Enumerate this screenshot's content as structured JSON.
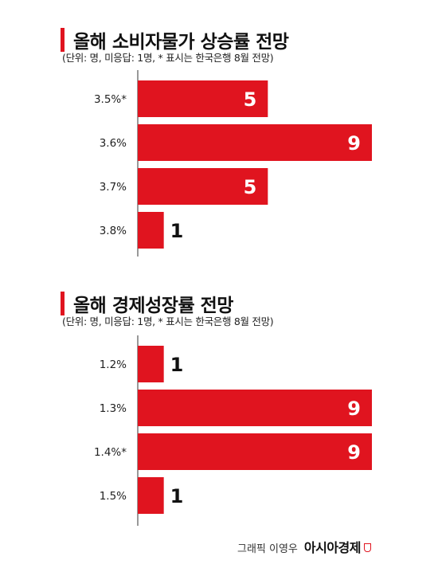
{
  "chart_data": [
    {
      "type": "bar",
      "orientation": "horizontal",
      "title": "올해 소비자물가 상승률 전망",
      "subtitle": "(단위: 명, 미응답: 1명, * 표시는 한국은행 8월 전망)",
      "categories": [
        "3.5%*",
        "3.6%",
        "3.7%",
        "3.8%"
      ],
      "values": [
        5,
        9,
        5,
        1
      ],
      "xlim": [
        0,
        9
      ],
      "grid": false,
      "legend": "none"
    },
    {
      "type": "bar",
      "orientation": "horizontal",
      "title": "올해 경제성장률 전망",
      "subtitle": "(단위: 명, 미응답: 1명, * 표시는 한국은행 8월 전망)",
      "categories": [
        "1.2%",
        "1.3%",
        "1.4%*",
        "1.5%"
      ],
      "values": [
        1,
        9,
        9,
        1
      ],
      "xlim": [
        0,
        9
      ],
      "grid": false,
      "legend": "none"
    }
  ],
  "credit": {
    "byline": "그래픽 이영우",
    "brand": "아시아경제"
  },
  "colors": {
    "bar": "#e0141f",
    "accent": "#e0141f",
    "label_inside": "#ffffff",
    "label_outside": "#111111"
  }
}
